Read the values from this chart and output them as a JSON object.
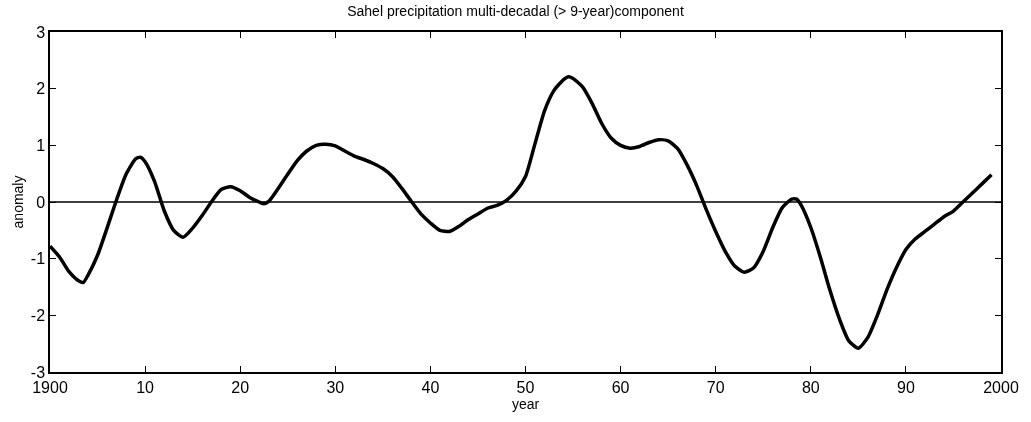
{
  "chart_data": {
    "type": "line",
    "title": "Sahel precipitation multi-decadal (> 9-year)component",
    "xlabel": "year",
    "ylabel": "anomaly",
    "x": [
      1900,
      1901,
      1902,
      1903,
      1903.5,
      1904,
      1905,
      1906,
      1907,
      1908,
      1909,
      1909.5,
      1910,
      1911,
      1912,
      1913,
      1914,
      1915,
      1916,
      1917,
      1918,
      1919,
      1920,
      1921,
      1922,
      1922.5,
      1923,
      1924,
      1925,
      1926,
      1927,
      1928,
      1929,
      1930,
      1931,
      1932,
      1933,
      1934,
      1935,
      1936,
      1937,
      1938,
      1939,
      1940,
      1941,
      1942,
      1943,
      1944,
      1945,
      1946,
      1947,
      1948,
      1949,
      1950,
      1951,
      1952,
      1953,
      1954,
      1954.5,
      1955,
      1956,
      1957,
      1958,
      1959,
      1960,
      1961,
      1962,
      1963,
      1964,
      1965,
      1966,
      1967,
      1968,
      1969,
      1970,
      1971,
      1972,
      1973,
      1974,
      1975,
      1976,
      1977,
      1978,
      1978.5,
      1979,
      1980,
      1981,
      1982,
      1983,
      1984,
      1985,
      1986,
      1987,
      1988,
      1989,
      1990,
      1991,
      1992,
      1993,
      1994,
      1995,
      1996,
      1997,
      1998,
      1999
    ],
    "series": [
      {
        "color": "#000000",
        "values": [
          -0.78,
          -0.97,
          -1.23,
          -1.39,
          -1.42,
          -1.29,
          -0.94,
          -0.46,
          0.04,
          0.49,
          0.76,
          0.79,
          0.71,
          0.36,
          -0.15,
          -0.5,
          -0.62,
          -0.46,
          -0.24,
          0.01,
          0.22,
          0.27,
          0.2,
          0.08,
          0.0,
          -0.03,
          0.01,
          0.24,
          0.49,
          0.73,
          0.9,
          1.0,
          1.02,
          0.99,
          0.9,
          0.81,
          0.75,
          0.68,
          0.59,
          0.45,
          0.24,
          0.01,
          -0.21,
          -0.37,
          -0.5,
          -0.52,
          -0.43,
          -0.31,
          -0.21,
          -0.11,
          -0.06,
          0.03,
          0.19,
          0.45,
          1.03,
          1.61,
          1.97,
          2.16,
          2.21,
          2.18,
          2.03,
          1.74,
          1.39,
          1.13,
          1.0,
          0.95,
          0.98,
          1.05,
          1.1,
          1.08,
          0.94,
          0.65,
          0.29,
          -0.13,
          -0.52,
          -0.87,
          -1.13,
          -1.24,
          -1.16,
          -0.87,
          -0.45,
          -0.1,
          0.05,
          0.05,
          -0.06,
          -0.45,
          -0.97,
          -1.55,
          -2.06,
          -2.45,
          -2.58,
          -2.39,
          -2.0,
          -1.55,
          -1.16,
          -0.84,
          -0.65,
          -0.52,
          -0.39,
          -0.26,
          -0.16,
          0.0,
          0.16,
          0.32,
          0.48
        ]
      }
    ],
    "xlim": [
      1900,
      2000
    ],
    "xticks": [
      {
        "value": 1900,
        "label": "1900"
      },
      {
        "value": 1910,
        "label": "10"
      },
      {
        "value": 1920,
        "label": "20"
      },
      {
        "value": 1930,
        "label": "30"
      },
      {
        "value": 1940,
        "label": "40"
      },
      {
        "value": 1950,
        "label": "50"
      },
      {
        "value": 1960,
        "label": "60"
      },
      {
        "value": 1970,
        "label": "70"
      },
      {
        "value": 1980,
        "label": "80"
      },
      {
        "value": 1990,
        "label": "90"
      },
      {
        "value": 2000,
        "label": "2000"
      }
    ],
    "ylim": [
      -3,
      3
    ],
    "yticks": [
      -3,
      -2,
      -1,
      0,
      1,
      2,
      3
    ],
    "ref_lines": [
      {
        "axis": "y",
        "value": 0,
        "color": "#000000"
      }
    ],
    "grid": false,
    "marker": "none",
    "line_style": "solid"
  }
}
